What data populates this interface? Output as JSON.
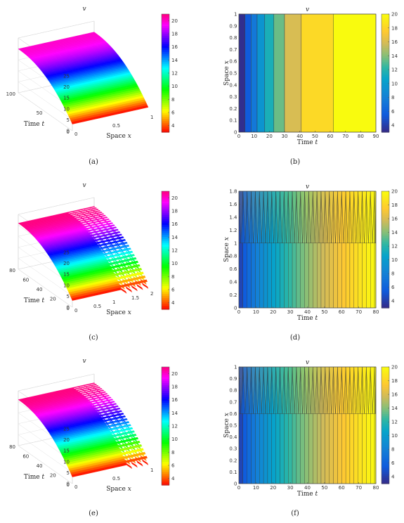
{
  "chart_data": [
    {
      "id": "a",
      "type": "surface3d",
      "title": "v",
      "caption": "(a)",
      "xlabel": "Space x",
      "ylabel": "Time t",
      "xticks": [
        "0",
        "0.5",
        "1"
      ],
      "yticks": [
        "0",
        "50",
        "100"
      ],
      "zticks": [
        "0",
        "5",
        "10",
        "15",
        "20",
        "25"
      ],
      "colorbar_ticks": [
        "4",
        "6",
        "8",
        "10",
        "12",
        "14",
        "16",
        "18",
        "20"
      ],
      "xlim": [
        0,
        1
      ],
      "ylim": [
        0,
        100
      ],
      "zlim": [
        0,
        25
      ],
      "clim": [
        3,
        21
      ],
      "colormap": "hsv",
      "v_start": 3,
      "v_end": 20,
      "pattern": "smooth"
    },
    {
      "id": "b",
      "type": "heatmap",
      "title": "v",
      "caption": "(b)",
      "xlabel": "Time t",
      "ylabel": "Space x",
      "xticks": [
        "0",
        "10",
        "20",
        "30",
        "40",
        "50",
        "60",
        "70",
        "80",
        "90"
      ],
      "yticks": [
        "0",
        "0.1",
        "0.2",
        "0.3",
        "0.4",
        "0.5",
        "0.6",
        "0.7",
        "0.8",
        "0.9",
        "1"
      ],
      "colorbar_ticks": [
        "4",
        "6",
        "8",
        "10",
        "12",
        "14",
        "16",
        "18",
        "20"
      ],
      "xlim": [
        0,
        90
      ],
      "ylim": [
        0,
        1
      ],
      "clim": [
        3,
        20
      ],
      "colormap": "parula",
      "bands": [
        {
          "t0": 0,
          "t1": 4,
          "v": 3.2
        },
        {
          "t0": 4,
          "t1": 8,
          "v": 5.5
        },
        {
          "t0": 8,
          "t1": 12,
          "v": 7.5
        },
        {
          "t0": 12,
          "t1": 17,
          "v": 9.5
        },
        {
          "t0": 17,
          "t1": 23,
          "v": 11.5
        },
        {
          "t0": 23,
          "t1": 30,
          "v": 13.5
        },
        {
          "t0": 30,
          "t1": 41,
          "v": 16
        },
        {
          "t0": 41,
          "t1": 62,
          "v": 18.3
        },
        {
          "t0": 62,
          "t1": 90,
          "v": 20
        }
      ]
    },
    {
      "id": "c",
      "type": "surface3d",
      "title": "v",
      "caption": "(c)",
      "xlabel": "Space x",
      "ylabel": "Time t",
      "xticks": [
        "0",
        "0.5",
        "1",
        "1.5",
        "2"
      ],
      "yticks": [
        "0",
        "20",
        "40",
        "60",
        "80"
      ],
      "zticks": [
        "0",
        "5",
        "10",
        "15",
        "20",
        "25"
      ],
      "colorbar_ticks": [
        "4",
        "6",
        "8",
        "10",
        "12",
        "14",
        "16",
        "18",
        "20"
      ],
      "xlim": [
        0,
        2
      ],
      "ylim": [
        0,
        80
      ],
      "zlim": [
        0,
        25
      ],
      "clim": [
        3,
        21
      ],
      "colormap": "hsv",
      "v_start": 3,
      "v_end": 21,
      "pattern": "sawtooth-far"
    },
    {
      "id": "d",
      "type": "heatmap",
      "title": "v",
      "caption": "(d)",
      "xlabel": "Time t",
      "ylabel": "Space x",
      "xticks": [
        "0",
        "10",
        "20",
        "30",
        "40",
        "50",
        "60",
        "70",
        "80"
      ],
      "yticks": [
        "0",
        "0.2",
        "0.4",
        "0.6",
        "0.8",
        "1",
        "1.2",
        "1.4",
        "1.6",
        "1.8"
      ],
      "colorbar_ticks": [
        "4",
        "6",
        "8",
        "10",
        "12",
        "14",
        "16",
        "18",
        "20"
      ],
      "xlim": [
        0,
        80
      ],
      "ylim": [
        0,
        1.8
      ],
      "clim": [
        3,
        20
      ],
      "colormap": "parula",
      "spikes": {
        "period": 2.4,
        "lower_to": 1.0,
        "upper_to": 1.8
      }
    },
    {
      "id": "e",
      "type": "surface3d",
      "title": "v",
      "caption": "(e)",
      "xlabel": "Space x",
      "ylabel": "Time t",
      "xticks": [
        "0",
        "0.5",
        "1"
      ],
      "yticks": [
        "0",
        "20",
        "40",
        "60",
        "80"
      ],
      "zticks": [
        "0",
        "5",
        "10",
        "15",
        "20",
        "25"
      ],
      "colorbar_ticks": [
        "4",
        "6",
        "8",
        "10",
        "12",
        "14",
        "16",
        "18",
        "20"
      ],
      "xlim": [
        0,
        1
      ],
      "ylim": [
        0,
        80
      ],
      "zlim": [
        0,
        25
      ],
      "clim": [
        3,
        21
      ],
      "colormap": "hsv",
      "v_start": 3,
      "v_end": 21,
      "pattern": "sawtooth-near"
    },
    {
      "id": "f",
      "type": "heatmap",
      "title": "v",
      "caption": "(f)",
      "xlabel": "Time t",
      "ylabel": "Space x",
      "xticks": [
        "0",
        "10",
        "20",
        "30",
        "40",
        "50",
        "60",
        "70",
        "80"
      ],
      "yticks": [
        "0",
        "0.1",
        "0.2",
        "0.3",
        "0.4",
        "0.5",
        "0.6",
        "0.7",
        "0.8",
        "0.9",
        "1"
      ],
      "colorbar_ticks": [
        "4",
        "6",
        "8",
        "10",
        "12",
        "14",
        "16",
        "18",
        "20"
      ],
      "xlim": [
        0,
        80
      ],
      "ylim": [
        0,
        1
      ],
      "clim": [
        3,
        20
      ],
      "colormap": "parula",
      "spikes": {
        "period": 2.4,
        "lower_to": 0.6,
        "upper_to": 1.0
      }
    }
  ]
}
